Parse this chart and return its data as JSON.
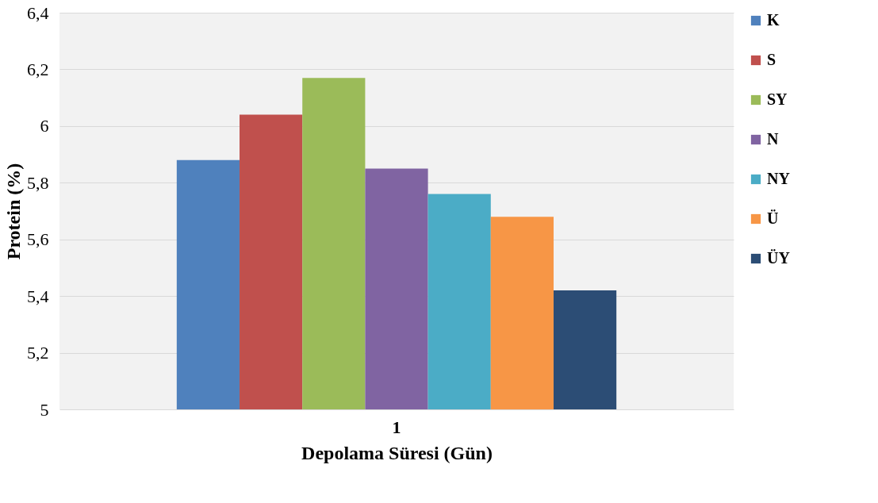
{
  "chart_data": {
    "type": "bar",
    "xlabel": "Depolama Süresi (Gün)",
    "ylabel": "Protein (%)",
    "categories": [
      "1"
    ],
    "series": [
      {
        "name": "K",
        "color": "#4f81bd",
        "values": [
          5.88
        ]
      },
      {
        "name": "S",
        "color": "#c0504d",
        "values": [
          6.04
        ]
      },
      {
        "name": "SY",
        "color": "#9bbb59",
        "values": [
          6.17
        ]
      },
      {
        "name": "N",
        "color": "#8064a2",
        "values": [
          5.85
        ]
      },
      {
        "name": "NY",
        "color": "#4bacc6",
        "values": [
          5.76
        ]
      },
      {
        "name": "Ü",
        "color": "#f79646",
        "values": [
          5.68
        ]
      },
      {
        "name": "ÜY",
        "color": "#2c4d75",
        "values": [
          5.42
        ]
      }
    ],
    "ylim": [
      5,
      6.4
    ],
    "yticks": [
      {
        "value": 5,
        "label": "5"
      },
      {
        "value": 5.2,
        "label": "5,2"
      },
      {
        "value": 5.4,
        "label": "5,4"
      },
      {
        "value": 5.6,
        "label": "5,6"
      },
      {
        "value": 5.8,
        "label": "5,8"
      },
      {
        "value": 6,
        "label": "6"
      },
      {
        "value": 6.2,
        "label": "6,2"
      },
      {
        "value": 6.4,
        "label": "6,4"
      }
    ],
    "grid": "y",
    "legend": "right"
  }
}
